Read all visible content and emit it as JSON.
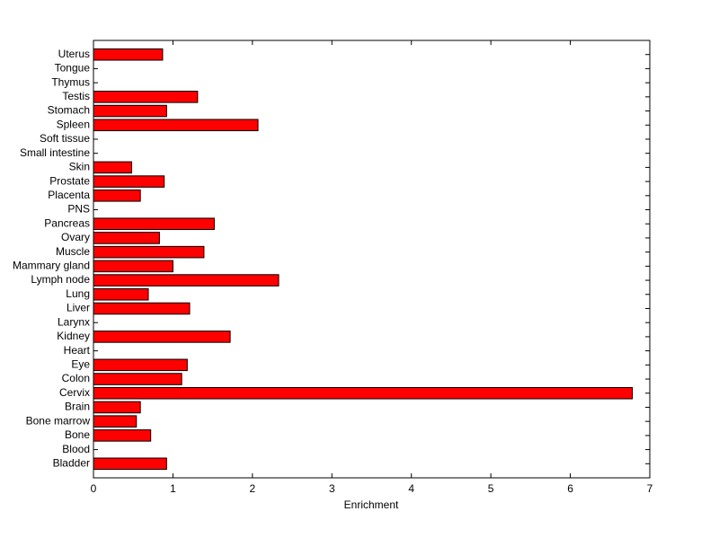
{
  "chart_data": {
    "type": "barh",
    "xlabel": "Enrichment",
    "categories": [
      "Bladder",
      "Blood",
      "Bone",
      "Bone marrow",
      "Brain",
      "Cervix",
      "Colon",
      "Eye",
      "Heart",
      "Kidney",
      "Larynx",
      "Liver",
      "Lung",
      "Lymph node",
      "Mammary gland",
      "Muscle",
      "Ovary",
      "Pancreas",
      "PNS",
      "Placenta",
      "Prostate",
      "Skin",
      "Small intestine",
      "Soft tissue",
      "Spleen",
      "Stomach",
      "Testis",
      "Thymus",
      "Tongue",
      "Uterus"
    ],
    "values": [
      0.92,
      0,
      0.72,
      0.54,
      0.59,
      6.78,
      1.11,
      1.18,
      0,
      1.72,
      0,
      1.21,
      0.69,
      2.33,
      1.0,
      1.39,
      0.83,
      1.52,
      0,
      0.59,
      0.89,
      0.48,
      0,
      0,
      2.07,
      0.92,
      1.31,
      0,
      0,
      0.87
    ],
    "color": "#ff0000",
    "xlim": [
      0,
      7
    ],
    "xticks": [
      0,
      1,
      2,
      3,
      4,
      5,
      6,
      7
    ]
  }
}
